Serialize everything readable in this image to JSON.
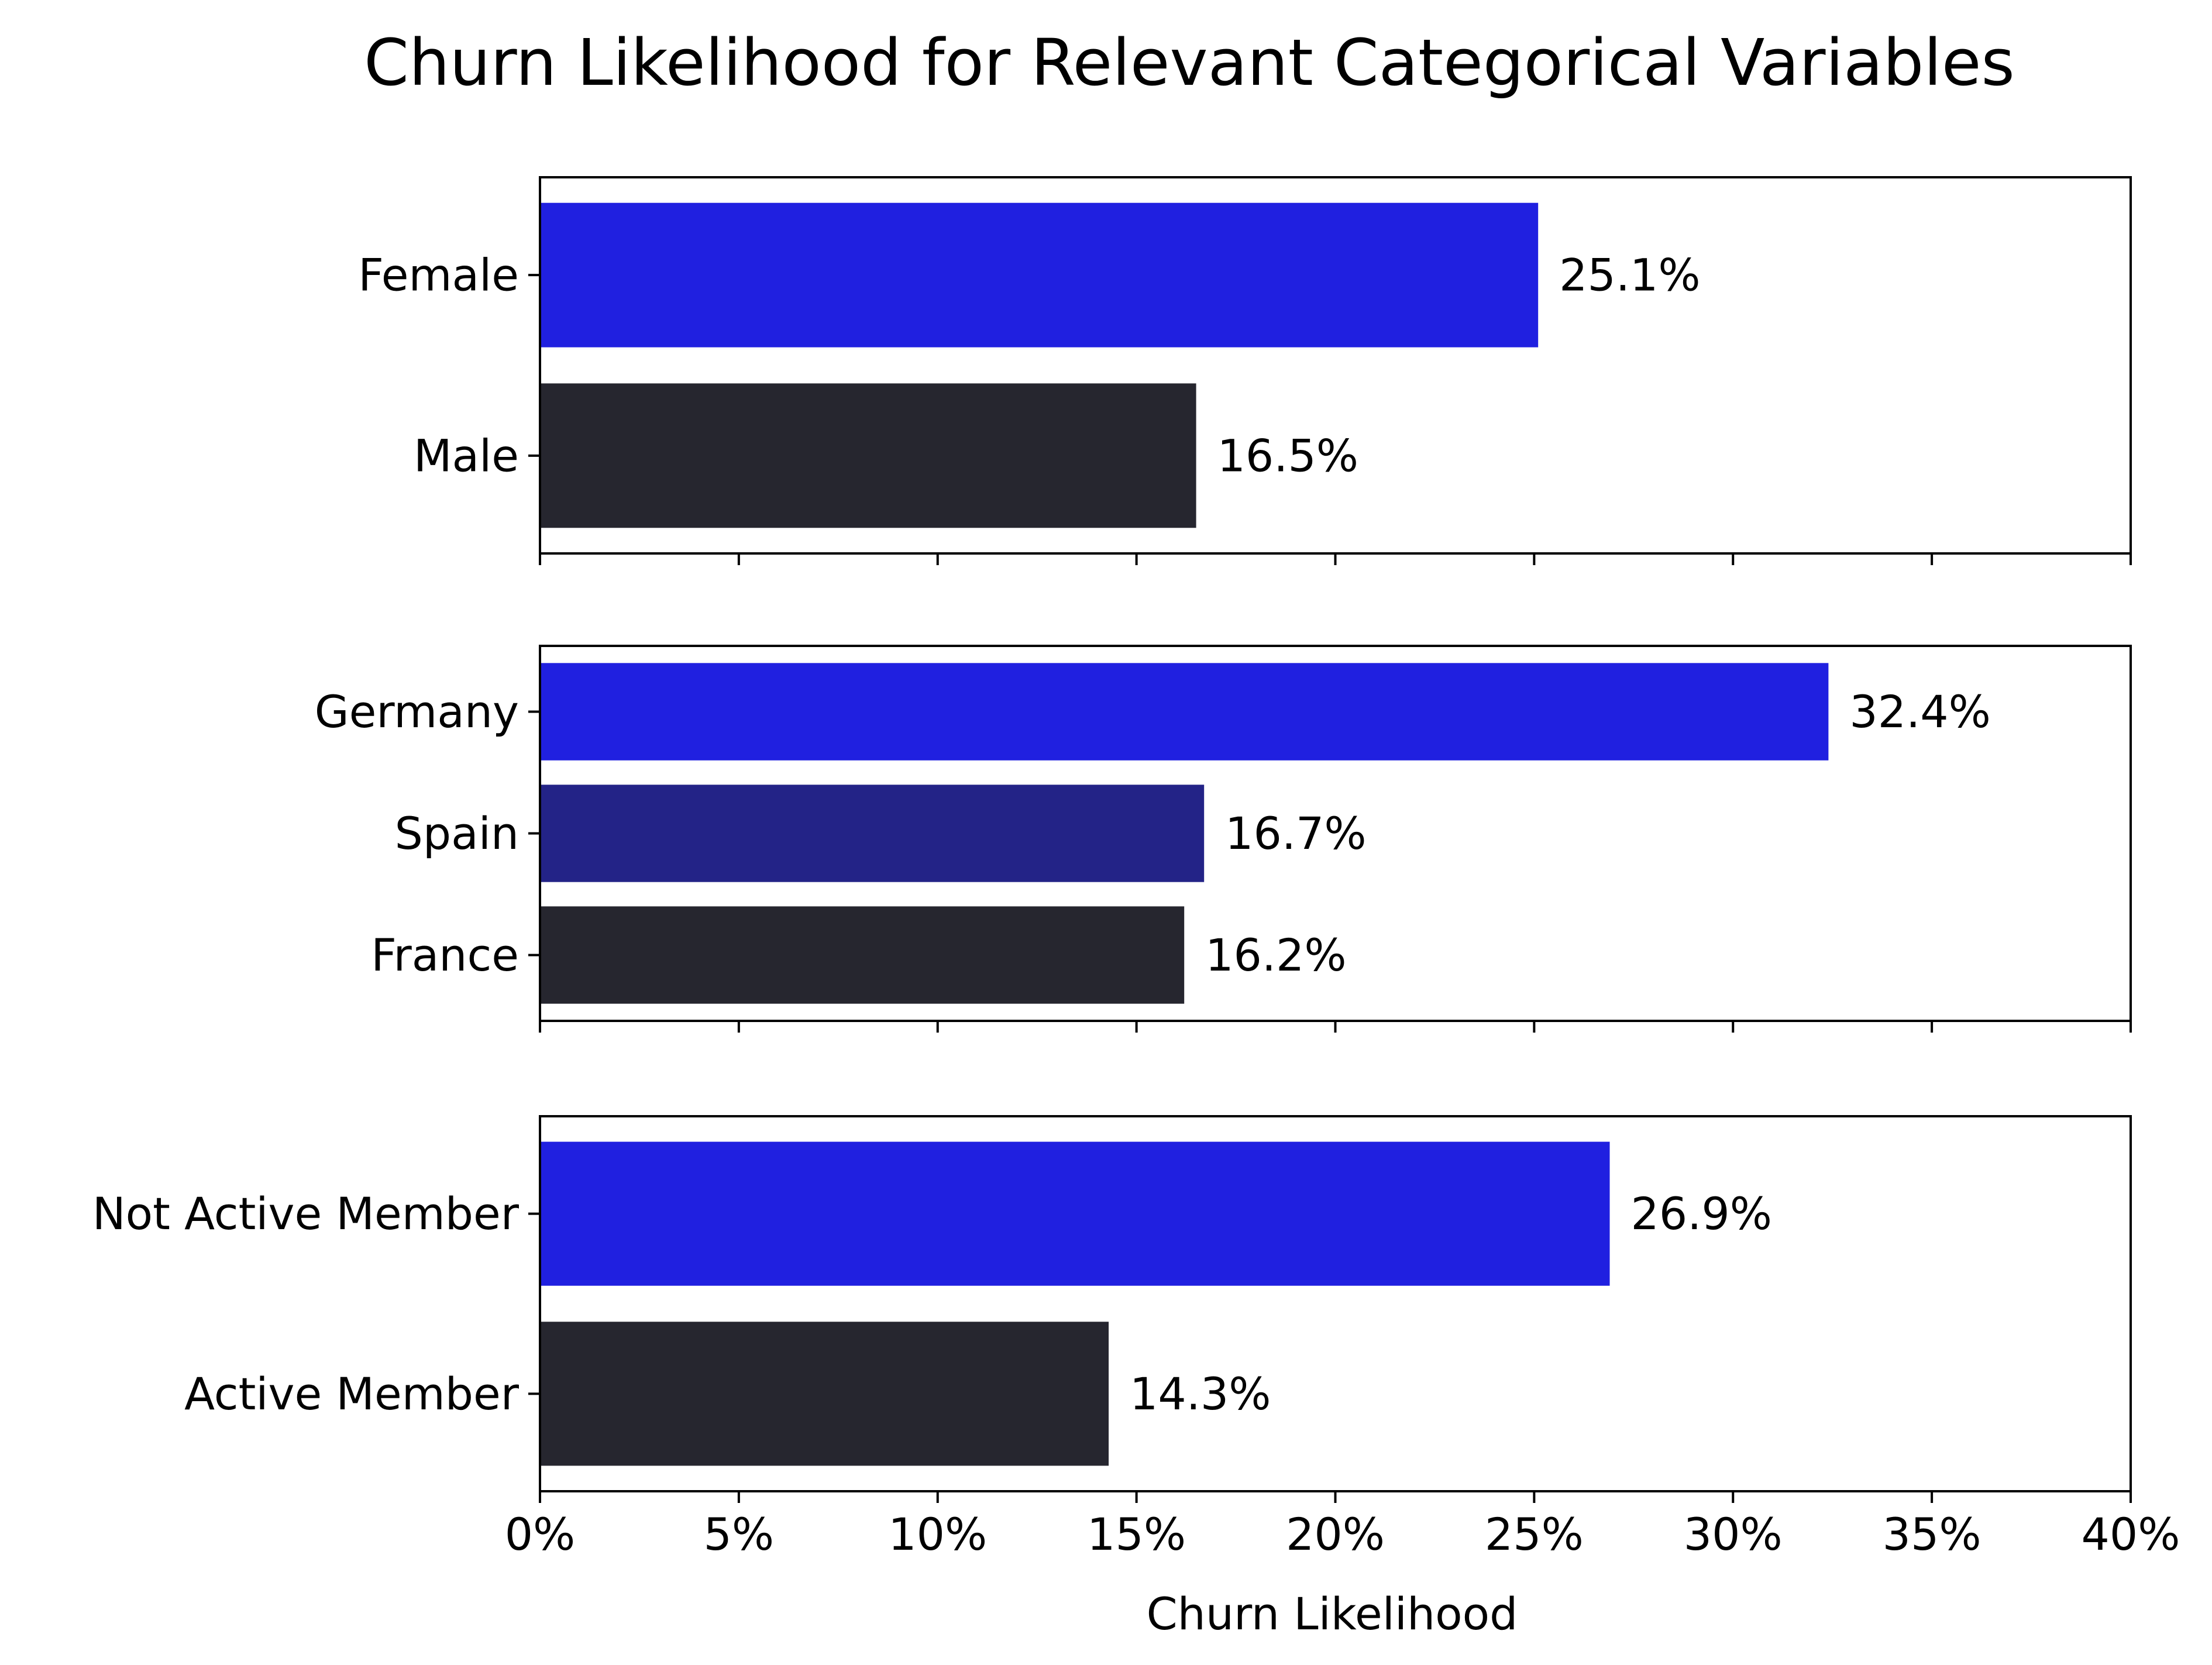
{
  "chart_data": {
    "type": "bar",
    "orientation": "horizontal",
    "title": "Churn Likelihood for Relevant Categorical Variables",
    "xlabel": "Churn Likelihood",
    "xlim": [
      0,
      40
    ],
    "xticks": [
      0,
      5,
      10,
      15,
      20,
      25,
      30,
      35,
      40
    ],
    "xtick_labels": [
      "0%",
      "5%",
      "10%",
      "15%",
      "20%",
      "25%",
      "30%",
      "35%",
      "40%"
    ],
    "shared_x": true,
    "grid": false,
    "panels": [
      {
        "categories": [
          "Female",
          "Male"
        ],
        "values": [
          25.1,
          16.5
        ],
        "value_labels": [
          "25.1%",
          "16.5%"
        ],
        "colors": [
          "#2020e0",
          "#26262f"
        ]
      },
      {
        "categories": [
          "Germany",
          "Spain",
          "France"
        ],
        "values": [
          32.4,
          16.7,
          16.2
        ],
        "value_labels": [
          "32.4%",
          "16.7%",
          "16.2%"
        ],
        "colors": [
          "#2020e0",
          "#232387",
          "#26262f"
        ]
      },
      {
        "categories": [
          "Not Active Member",
          "Active Member"
        ],
        "values": [
          26.9,
          14.3
        ],
        "value_labels": [
          "26.9%",
          "14.3%"
        ],
        "colors": [
          "#2020e0",
          "#26262f"
        ]
      }
    ]
  }
}
